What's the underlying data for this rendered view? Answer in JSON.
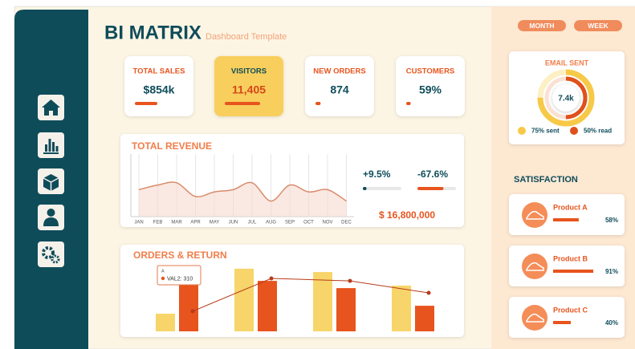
{
  "header": {
    "title": "BI MATRIX",
    "subtitle": "Dashboard Template"
  },
  "kpis": [
    {
      "label": "TOTAL SALES",
      "value": "$854k",
      "progress": 35
    },
    {
      "label": "VISITORS",
      "value": "11,405",
      "progress": 55
    },
    {
      "label": "NEW ORDERS",
      "value": "874",
      "progress": 8
    },
    {
      "label": "CUSTOMERS",
      "value": "59%",
      "progress": 7
    }
  ],
  "toggles": [
    "MONTH",
    "WEEK"
  ],
  "chart_data": [
    {
      "type": "line",
      "title": "TOTAL REVENUE",
      "categories": [
        "JAN",
        "FEB",
        "MAR",
        "APR",
        "MAY",
        "JUN",
        "JUL",
        "AUG",
        "SEP",
        "OCT",
        "NOV",
        "DEC"
      ],
      "values": [
        45,
        55,
        60,
        30,
        40,
        45,
        60,
        20,
        55,
        40,
        45,
        20
      ],
      "ylim": [
        0,
        100
      ],
      "color": "#d98b6a",
      "grid": true
    },
    {
      "type": "bar",
      "title": "ORDERS & RETURN",
      "categories": [
        "A",
        null,
        null,
        null
      ],
      "ylim": [
        0,
        400
      ],
      "series": [
        {
          "color": "#f7d56a",
          "values": [
            100,
            355,
            336,
            259
          ]
        },
        {
          "name": "VAL2",
          "color": "#e8541e",
          "values": [
            310,
            286,
            245,
            145
          ]
        },
        {
          "type": "line",
          "color": "#b83a1a",
          "values": [
            114,
            300,
            286,
            218
          ]
        }
      ],
      "tooltip": "VAL2: 310"
    }
  ],
  "revenue_stats": {
    "growth": [
      {
        "value": 9.5,
        "label": "+9.5%"
      },
      {
        "value": -67.6,
        "label": "-67.6%"
      }
    ],
    "total": "$ 16,800,000"
  },
  "email": {
    "title": "EMAIL SENT",
    "center": "7.4k",
    "rings": [
      {
        "value": 75,
        "label": "75% sent",
        "color": "#f7c948"
      },
      {
        "value": 50,
        "label": "50% read",
        "color": "#e0501c"
      }
    ]
  },
  "satisfaction": {
    "title": "SATISFACTION",
    "products": [
      {
        "name": "Product A",
        "value": 58,
        "label": "58%"
      },
      {
        "name": "Product B",
        "value": 91,
        "label": "91%"
      },
      {
        "name": "Product C",
        "value": 40,
        "label": "40%"
      }
    ]
  }
}
